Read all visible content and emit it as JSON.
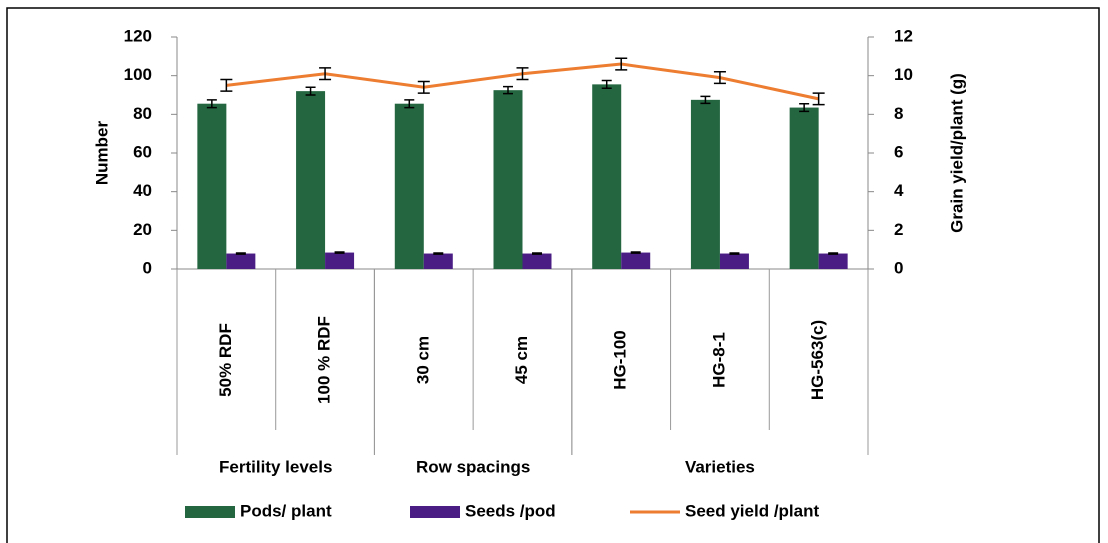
{
  "chart_data": {
    "type": "bar",
    "categories": [
      "50% RDF",
      "100 % RDF",
      "30 cm",
      "45 cm",
      "HG-100",
      "HG-8-1",
      "HG-563(c)"
    ],
    "groups": [
      {
        "name": "Fertility levels",
        "size": 2
      },
      {
        "name": "Row spacings",
        "size": 2
      },
      {
        "name": "Varieties",
        "size": 3
      }
    ],
    "series": [
      {
        "name": "Pods/ plant",
        "type": "bar",
        "color": "#236640",
        "values": [
          85.5,
          92,
          85.5,
          92.5,
          95.5,
          87.5,
          83.5
        ],
        "errors": [
          2,
          2,
          2,
          1.8,
          2,
          1.8,
          2
        ]
      },
      {
        "name": "Seeds /pod",
        "type": "bar",
        "color": "#4a1d85",
        "values": [
          8,
          8.5,
          8,
          8,
          8.5,
          8,
          8
        ],
        "errors": [
          0.3,
          0.3,
          0.3,
          0.3,
          0.3,
          0.3,
          0.3
        ]
      },
      {
        "name": "Seed yield /plant",
        "type": "line",
        "axis": "y2",
        "color": "#ed7d31",
        "values": [
          9.5,
          10.1,
          9.4,
          10.1,
          10.6,
          9.9,
          8.8
        ],
        "errors": [
          0.3,
          0.3,
          0.3,
          0.3,
          0.3,
          0.3,
          0.3
        ]
      }
    ],
    "ylabel": "Number",
    "y2label": "Grain yield/plant (g)",
    "ylim": [
      0,
      120
    ],
    "yticks": [
      0,
      20,
      40,
      60,
      80,
      100,
      120
    ],
    "y2lim": [
      0,
      12
    ],
    "y2ticks": [
      0,
      2,
      4,
      6,
      8,
      10,
      12
    ],
    "legend": "bottom"
  }
}
